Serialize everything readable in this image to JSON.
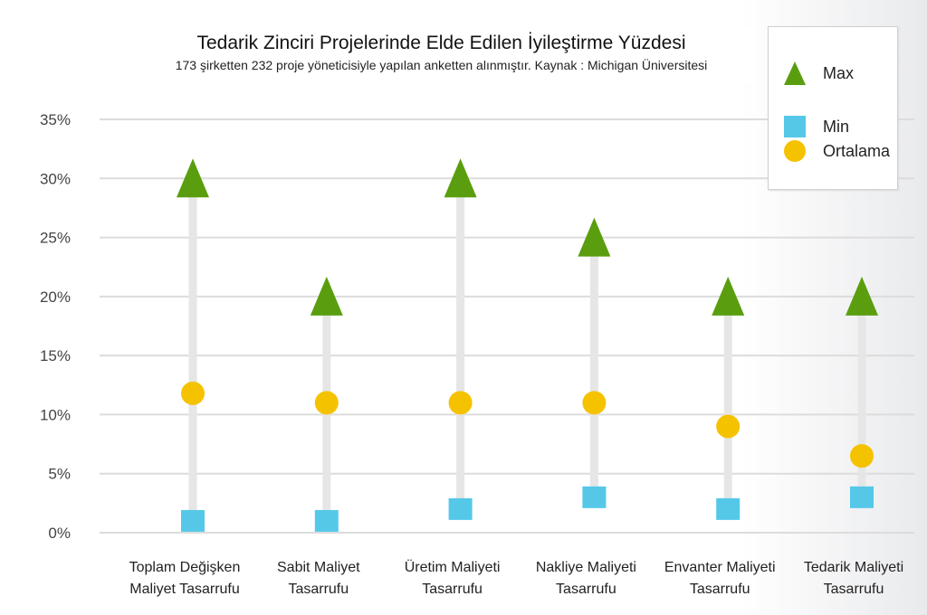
{
  "chart_data": {
    "type": "scatter",
    "title": "Tedarik Zinciri Projelerinde Elde Edilen İyileştirme Yüzdesi",
    "subtitle": "173 şirketten 232 proje yöneticisiyle yapılan anketten alınmıştır. Kaynak : Michigan Üniversitesi",
    "categories": [
      [
        "Toplam Değişken",
        "Maliyet Tasarrufu"
      ],
      [
        "Sabit Maliyet",
        "Tasarrufu"
      ],
      [
        "Üretim Maliyeti",
        "Tasarrufu"
      ],
      [
        "Nakliye Maliyeti",
        "Tasarrufu"
      ],
      [
        "Envanter Maliyeti",
        "Tasarrufu"
      ],
      [
        "Tedarik Maliyeti",
        "Tasarrufu"
      ]
    ],
    "series": [
      {
        "name": "Max",
        "marker": "triangle",
        "color": "#5a9e0f",
        "values": [
          30,
          20,
          30,
          25,
          20,
          20
        ]
      },
      {
        "name": "Min",
        "marker": "square",
        "color": "#55c8e8",
        "values": [
          1,
          1,
          2,
          3,
          2,
          3
        ]
      },
      {
        "name": "Ortalama",
        "marker": "circle",
        "color": "#f5c200",
        "values": [
          11.8,
          11,
          11,
          11,
          9,
          6.5
        ]
      }
    ],
    "yticks": [
      "0%",
      "5%",
      "10%",
      "15%",
      "20%",
      "25%",
      "30%",
      "35%"
    ],
    "ylim": [
      0,
      35
    ],
    "grid": true,
    "legend": "top-right",
    "range_bar_color": "#e6e6e6"
  }
}
